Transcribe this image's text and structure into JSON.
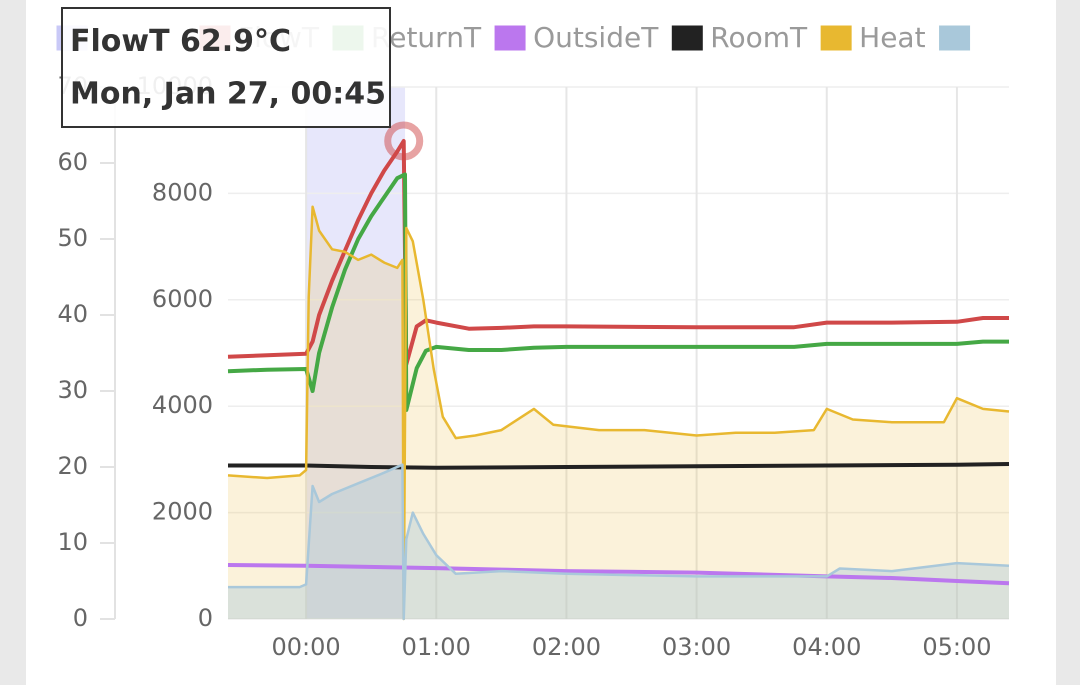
{
  "chart_data": {
    "type": "line",
    "xlim": [
      -0.6,
      5.4
    ],
    "xticks": [
      {
        "value": 0,
        "label": "00:00"
      },
      {
        "value": 1,
        "label": "01:00"
      },
      {
        "value": 2,
        "label": "02:00"
      },
      {
        "value": 3,
        "label": "03:00"
      },
      {
        "value": 4,
        "label": "04:00"
      },
      {
        "value": 5,
        "label": "05:00"
      }
    ],
    "ylim": [
      0,
      70
    ],
    "yticks": [
      0,
      10,
      20,
      30,
      40,
      50,
      60,
      70
    ],
    "y2lim": [
      0,
      10000
    ],
    "y2ticks": [
      0,
      2000,
      4000,
      6000,
      8000,
      10000
    ],
    "grid": true,
    "series": [
      {
        "name": null,
        "color": "#c9c9f7",
        "x_range": [
          0,
          0.76
        ]
      },
      {
        "name": "FlowT",
        "color": "#d04848",
        "x": [
          -0.6,
          -0.3,
          0,
          0.05,
          0.1,
          0.2,
          0.3,
          0.4,
          0.5,
          0.6,
          0.7,
          0.75,
          0.77,
          0.85,
          0.92,
          1,
          1.25,
          1.5,
          1.75,
          2,
          3,
          3.75,
          4,
          4.5,
          5,
          5.2,
          5.4
        ],
        "values": [
          34.5,
          34.7,
          34.9,
          36.5,
          40,
          44.5,
          48.5,
          52.5,
          56,
          59,
          61.5,
          62.9,
          33.5,
          38.5,
          39.3,
          39,
          38.2,
          38.3,
          38.5,
          38.5,
          38.4,
          38.4,
          39,
          39,
          39.1,
          39.6,
          39.6
        ]
      },
      {
        "name": "ReturnT",
        "color": "#45a845",
        "x": [
          -0.6,
          -0.3,
          0,
          0.05,
          0.1,
          0.2,
          0.3,
          0.4,
          0.5,
          0.6,
          0.7,
          0.76,
          0.77,
          0.85,
          0.92,
          1,
          1.25,
          1.5,
          1.75,
          2,
          3,
          3.75,
          4,
          4.5,
          5,
          5.2,
          5.4
        ],
        "values": [
          32.6,
          32.8,
          32.9,
          30,
          35,
          41,
          46,
          50,
          53,
          55.5,
          58,
          58.5,
          27.5,
          33,
          35.3,
          35.8,
          35.4,
          35.4,
          35.7,
          35.8,
          35.8,
          35.8,
          36.2,
          36.2,
          36.2,
          36.5,
          36.5
        ]
      },
      {
        "name": "OutsideT",
        "color": "#bb77ee",
        "x": [
          -0.6,
          0,
          1,
          1.5,
          2,
          3,
          4,
          4.5,
          5,
          5.4
        ],
        "values": [
          7.1,
          7,
          6.7,
          6.5,
          6.3,
          6.1,
          5.6,
          5.4,
          5,
          4.7
        ]
      },
      {
        "name": "RoomT",
        "color": "#222222",
        "x": [
          -0.6,
          0,
          0.5,
          1,
          2,
          3,
          4,
          5,
          5.4
        ],
        "values": [
          20.2,
          20.2,
          20,
          19.9,
          20,
          20.1,
          20.2,
          20.3,
          20.4
        ]
      },
      {
        "name": "Heat",
        "color": "#e8b830",
        "axis": "y2",
        "area": true,
        "x": [
          -0.6,
          -0.3,
          -0.05,
          0,
          0.02,
          0.05,
          0.1,
          0.2,
          0.3,
          0.4,
          0.5,
          0.6,
          0.7,
          0.74,
          0.75,
          0.77,
          0.82,
          0.9,
          0.98,
          1.05,
          1.15,
          1.3,
          1.5,
          1.75,
          1.9,
          2.25,
          2.6,
          3,
          3.3,
          3.6,
          3.9,
          4,
          4.2,
          4.5,
          4.9,
          5,
          5.2,
          5.4
        ],
        "values": [
          2700,
          2650,
          2700,
          2800,
          6050,
          7750,
          7300,
          6950,
          6900,
          6750,
          6850,
          6700,
          6600,
          6750,
          0,
          7350,
          7100,
          6000,
          4700,
          3800,
          3400,
          3450,
          3550,
          3950,
          3650,
          3550,
          3550,
          3450,
          3500,
          3500,
          3550,
          3950,
          3750,
          3700,
          3700,
          4150,
          3950,
          3900
        ]
      },
      {
        "name": null,
        "color": "#a9c8da",
        "axis": "y2",
        "area": true,
        "x": [
          -0.6,
          -0.05,
          0,
          0.05,
          0.1,
          0.2,
          0.4,
          0.6,
          0.74,
          0.75,
          0.77,
          0.82,
          0.9,
          1,
          1.15,
          1.5,
          2,
          3,
          4,
          4.1,
          4.5,
          5,
          5.4
        ],
        "values": [
          600,
          600,
          650,
          2500,
          2200,
          2350,
          2550,
          2750,
          2900,
          0,
          1500,
          2000,
          1600,
          1200,
          850,
          900,
          850,
          800,
          800,
          950,
          900,
          1050,
          1000
        ]
      }
    ],
    "tooltip": {
      "series": 1,
      "x": 0.75,
      "value": 62.9,
      "value_label": "62.9°C",
      "time_label": "Mon, Jan 27, 00:45"
    }
  }
}
